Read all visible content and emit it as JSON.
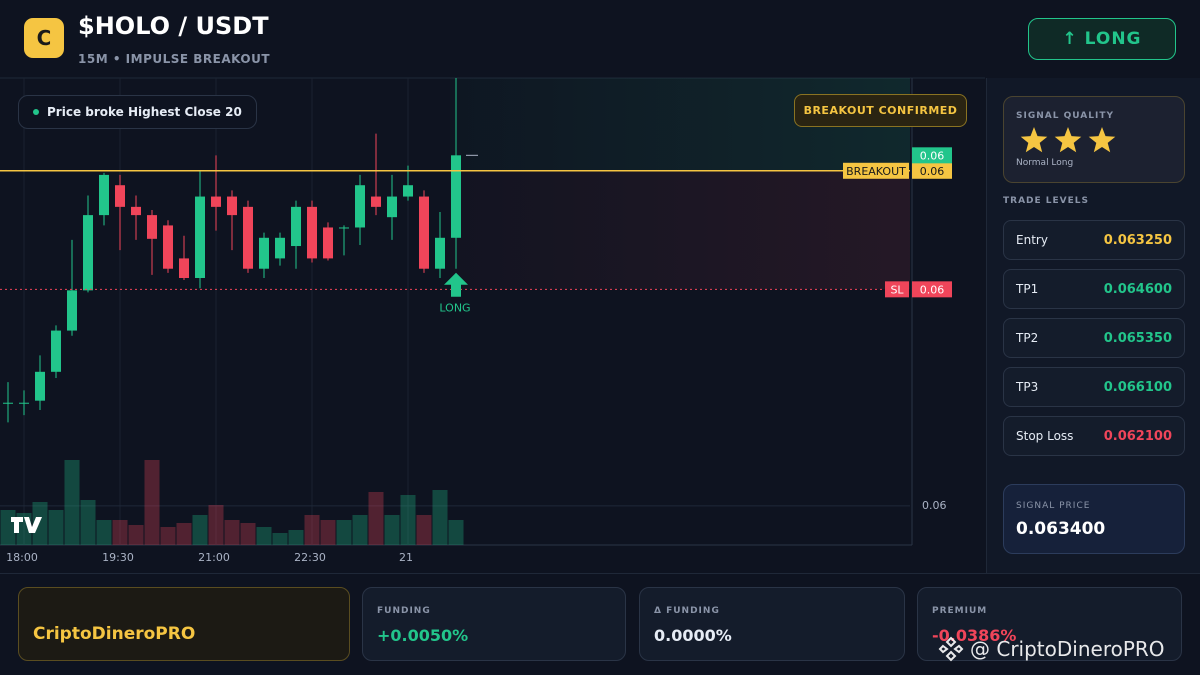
{
  "header": {
    "logo": "C",
    "title": "$HOLO / USDT",
    "subtitle": "15M • IMPULSE BREAKOUT",
    "button": "↑ LONG"
  },
  "chart_data": {
    "type": "candlestick",
    "categories": [
      null,
      "18:00",
      null,
      null,
      null,
      null,
      null,
      "19:30",
      null,
      null,
      null,
      null,
      null,
      "21:00",
      null,
      null,
      null,
      null,
      null,
      "22:30",
      null,
      null,
      null,
      null,
      null,
      "21",
      null,
      null,
      null
    ],
    "open": [
      0.061,
      0.061,
      0.06102,
      0.0613,
      0.0617,
      0.06209,
      0.06282,
      0.06311,
      0.0629,
      0.06282,
      0.06272,
      0.0624,
      0.06221,
      0.063,
      0.063,
      0.0629,
      0.0623,
      0.0624,
      0.06252,
      0.0629,
      0.0627,
      0.0627,
      0.0627,
      0.063,
      0.0628,
      0.063,
      0.063,
      0.0623,
      0.0626
    ],
    "high": [
      0.0612,
      0.06112,
      0.06146,
      0.06175,
      0.06258,
      0.06301,
      0.06323,
      0.06321,
      0.06301,
      0.06287,
      0.06277,
      0.06262,
      0.06325,
      0.0634,
      0.06306,
      0.06296,
      0.06265,
      0.06265,
      0.06296,
      0.06296,
      0.06275,
      0.06272,
      0.06321,
      0.06361,
      0.06321,
      0.0633,
      0.06306,
      0.06285,
      0.06415
    ],
    "low": [
      0.06081,
      0.06088,
      0.06093,
      0.06124,
      0.06165,
      0.06207,
      0.06272,
      0.06248,
      0.06258,
      0.06224,
      0.06226,
      0.06219,
      0.06211,
      0.06267,
      0.06248,
      0.06226,
      0.06221,
      0.06233,
      0.0623,
      0.06236,
      0.06238,
      0.06243,
      0.06253,
      0.06282,
      0.06258,
      0.06296,
      0.06226,
      0.06221,
      0.0623
    ],
    "close": [
      0.061,
      0.061,
      0.0613,
      0.0617,
      0.06209,
      0.06282,
      0.06321,
      0.0629,
      0.06282,
      0.06259,
      0.0623,
      0.06221,
      0.063,
      0.0629,
      0.06282,
      0.0623,
      0.0626,
      0.0626,
      0.0629,
      0.0624,
      0.0624,
      0.0627,
      0.06311,
      0.0629,
      0.063,
      0.06311,
      0.0623,
      0.0626,
      0.0634
    ],
    "volume": [
      35,
      32,
      43,
      35,
      85,
      45,
      25,
      25,
      20,
      85,
      18,
      22,
      30,
      40,
      25,
      22,
      18,
      12,
      15,
      30,
      25,
      25,
      30,
      53,
      30,
      50,
      30,
      55,
      25
    ],
    "volume_lim": [
      0,
      100
    ],
    "up_color": "#22c58b",
    "down_color": "#f0455a",
    "ylim": [
      0.05962,
      0.06415
    ],
    "yticks": [
      0.06
    ],
    "grid": true,
    "last_price": {
      "value": 0.0634,
      "value_label": "0.06",
      "color": "#22c58b"
    },
    "price_lines": [
      {
        "name": "BREAKOUT",
        "value": 0.06325,
        "value_label": "0.06",
        "color": "#f5c542"
      },
      {
        "name": "SL",
        "value": 0.0621,
        "value_label": "0.06",
        "color": "#f0455a"
      }
    ],
    "annotations": {
      "note": "Price broke Highest Close 20",
      "badge": "BREAKOUT CONFIRMED",
      "signal": "LONG"
    }
  },
  "sidebar": {
    "quality": {
      "label": "SIGNAL QUALITY",
      "stars": 3,
      "note": "Normal Long"
    },
    "levels_title": "TRADE LEVELS",
    "levels": [
      {
        "name": "Entry",
        "value": "0.063250",
        "color": "#f5c542"
      },
      {
        "name": "TP1",
        "value": "0.064600",
        "color": "#22c58b"
      },
      {
        "name": "TP2",
        "value": "0.065350",
        "color": "#22c58b"
      },
      {
        "name": "TP3",
        "value": "0.066100",
        "color": "#22c58b"
      },
      {
        "name": "Stop Loss",
        "value": "0.062100",
        "color": "#f0455a"
      }
    ],
    "signal_price": {
      "label": "SIGNAL PRICE",
      "value": "0.063400"
    }
  },
  "footer": {
    "brand": "CriptoDineroPRO",
    "cards": [
      {
        "label": "FUNDING",
        "value": "+0.0050%",
        "color": "#22c58b"
      },
      {
        "label": "Δ FUNDING",
        "value": "0.0000%",
        "color": "#e6ecf5"
      },
      {
        "label": "PREMIUM",
        "value": "-0.0386%",
        "color": "#f0455a"
      }
    ]
  },
  "watermark": "@ CriptoDineroPRO"
}
